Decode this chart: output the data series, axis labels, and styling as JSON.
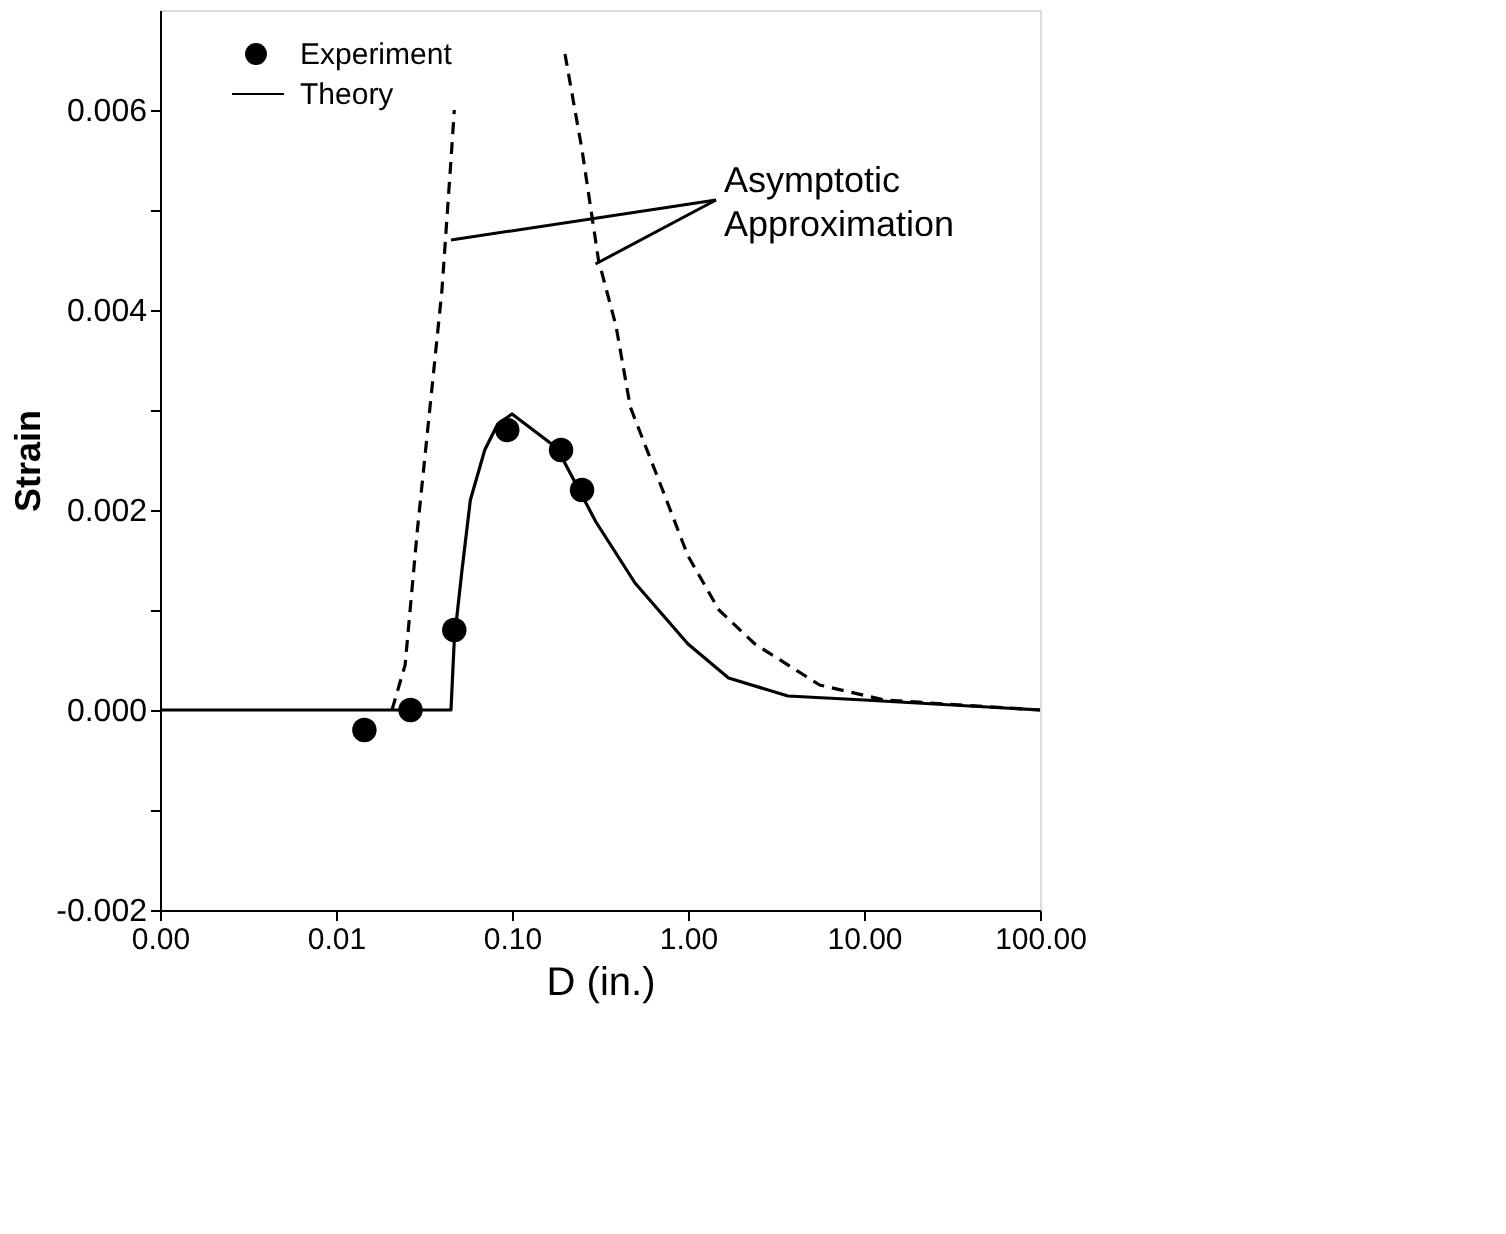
{
  "chart_data": {
    "type": "line",
    "xlabel": "D (in.)",
    "ylabel": "Strain",
    "log": "x",
    "xlim": [
      0.001,
      100
    ],
    "xticks": [
      {
        "value": 0.001,
        "label": "0.00"
      },
      {
        "value": 0.01,
        "label": "0.01"
      },
      {
        "value": 0.1,
        "label": "0.10"
      },
      {
        "value": 1,
        "label": "1.00"
      },
      {
        "value": 10,
        "label": "10.00"
      },
      {
        "value": 100,
        "label": "100.00"
      }
    ],
    "ylim": [
      -0.002,
      0.007
    ],
    "yticks": [
      {
        "value": -0.002,
        "label": "-0.002"
      },
      {
        "value": -0.001,
        "label": null
      },
      {
        "value": 0,
        "label": "0.000"
      },
      {
        "value": 0.001,
        "label": null
      },
      {
        "value": 0.002,
        "label": "0.002"
      },
      {
        "value": 0.003,
        "label": null
      },
      {
        "value": 0.004,
        "label": "0.004"
      },
      {
        "value": 0.005,
        "label": null
      },
      {
        "value": 0.006,
        "label": "0.006"
      }
    ],
    "grid": false,
    "legend": "top left",
    "annotations": [
      {
        "text": "Asymptotic\nApproximation",
        "x": 0.045,
        "y": 0.0047
      }
    ],
    "series": [
      {
        "name": "Experiment",
        "type": "scatter",
        "marker": "circle",
        "color": "#000000",
        "x": [
          0.0145,
          0.0265,
          0.047,
          0.094,
          0.19,
          0.25
        ],
        "values": [
          -0.0002,
          0.0,
          0.0008,
          0.0028,
          0.0026,
          0.0022
        ]
      },
      {
        "name": "Theory",
        "line_style": "solid",
        "color": "#000000",
        "x": [
          0.001,
          0.045,
          0.047,
          0.052,
          0.058,
          0.07,
          0.083,
          0.1,
          0.18,
          0.3,
          0.5,
          1.0,
          1.7,
          3.7,
          10,
          100
        ],
        "values": [
          0.0,
          0.0,
          0.0007,
          0.0014,
          0.0021,
          0.0026,
          0.00286,
          0.00296,
          0.00262,
          0.00188,
          0.00127,
          0.00066,
          0.00032,
          0.00014,
          0.0001,
          0.0
        ]
      },
      {
        "line_style": "dashed",
        "color": "#000000",
        "x": [
          0.0208,
          0.0247,
          0.029,
          0.035,
          0.04,
          0.045,
          0.047
        ],
        "values": [
          0.0,
          0.00045,
          0.0018,
          0.0032,
          0.0042,
          0.0055,
          0.006
        ]
      },
      {
        "line_style": "dashed",
        "color": "#000000",
        "x": [
          0.2,
          0.25,
          0.31,
          0.39,
          0.47,
          0.71,
          1.0,
          1.5,
          2.4,
          5.6,
          13,
          100
        ],
        "values": [
          0.00656,
          0.0056,
          0.0045,
          0.00384,
          0.00303,
          0.00222,
          0.00154,
          0.001,
          0.00066,
          0.00025,
          0.0001,
          0.0
        ]
      }
    ]
  }
}
